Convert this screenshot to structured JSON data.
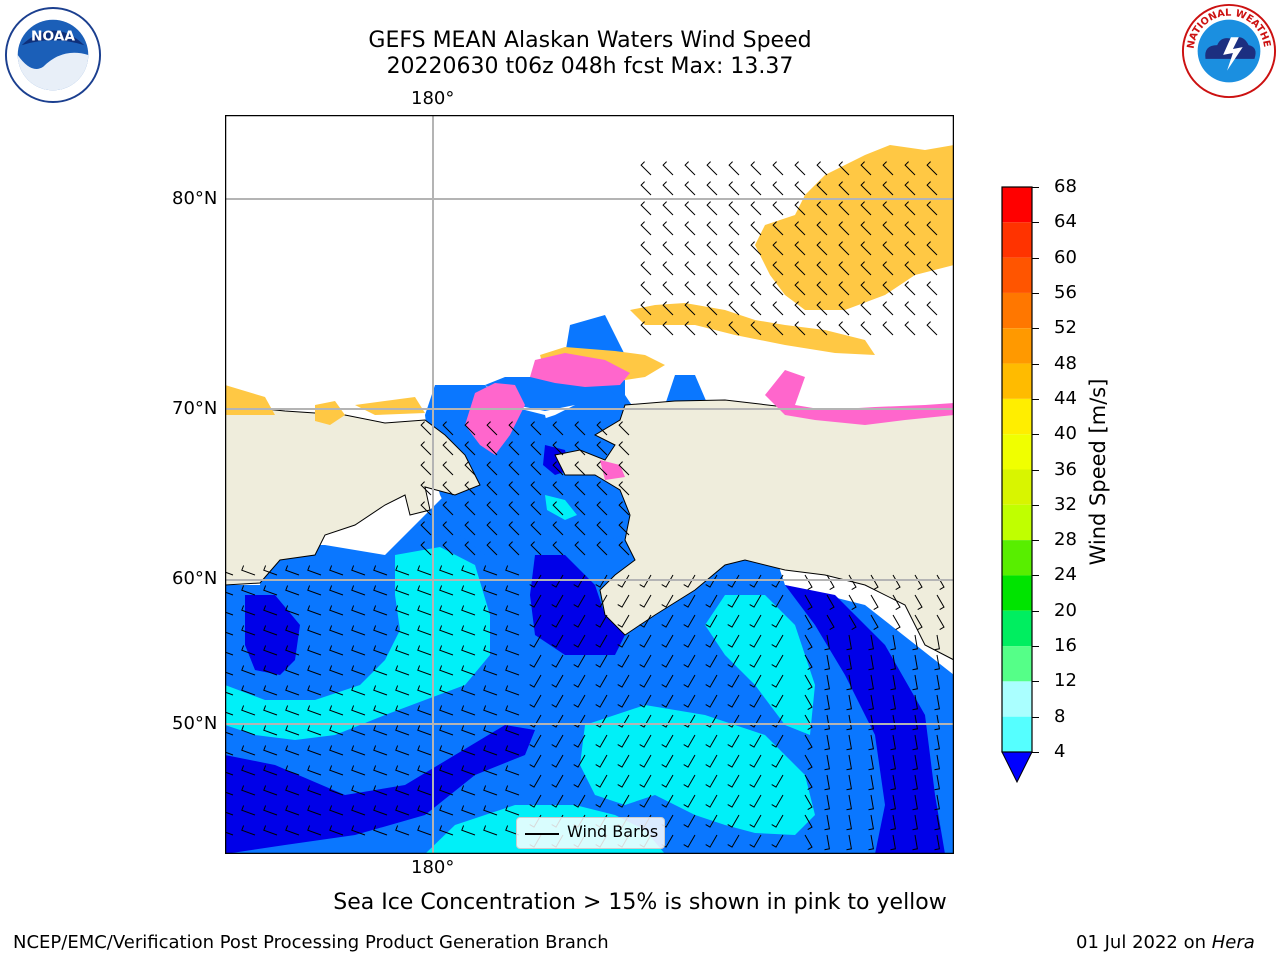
{
  "title_line1": "GEFS MEAN Alaskan Waters Wind Speed",
  "title_line2": "20220630 t06z 048h fcst   Max: 13.37",
  "map": {
    "lon_label_top": "180°",
    "lon_label_bottom": "180°",
    "lat_labels": [
      "80°N",
      "70°N",
      "60°N",
      "50°N"
    ],
    "legend_label": "Wind Barbs",
    "colors": {
      "land": "#efeddc",
      "ocean_4_8": "#0a77ff",
      "ocean_lt4": "#0000e8",
      "ocean_8_12": "#00f0f8",
      "ice_pink": "#ff66cc",
      "ice_yellow": "#ffc844"
    }
  },
  "colorbar": {
    "title": "Wind Speed [m/s]",
    "ticks": [
      "68",
      "64",
      "60",
      "56",
      "52",
      "48",
      "44",
      "40",
      "36",
      "32",
      "28",
      "24",
      "20",
      "16",
      "12",
      "8",
      "4"
    ],
    "colors": [
      "#ff0000",
      "#ff3300",
      "#ff5500",
      "#ff7700",
      "#ff9900",
      "#ffbb00",
      "#ffee00",
      "#f0ff00",
      "#d8f500",
      "#c0ff00",
      "#58ee00",
      "#00e400",
      "#00ee60",
      "#55ff88",
      "#aaffff",
      "#55ffff",
      "#00f0f8",
      "#0a77ff"
    ],
    "under_color": "#0000ff"
  },
  "footer": {
    "ice_note": "Sea Ice Concentration > 15% is shown in pink to yellow",
    "credit": "NCEP/EMC/Verification Post Processing Product Generation Branch",
    "date": "01 Jul 2022 on",
    "machine": "Hera"
  },
  "logos": {
    "noaa_text": "NOAA",
    "nws_text": "NATIONAL WEATHER SERVICE"
  }
}
